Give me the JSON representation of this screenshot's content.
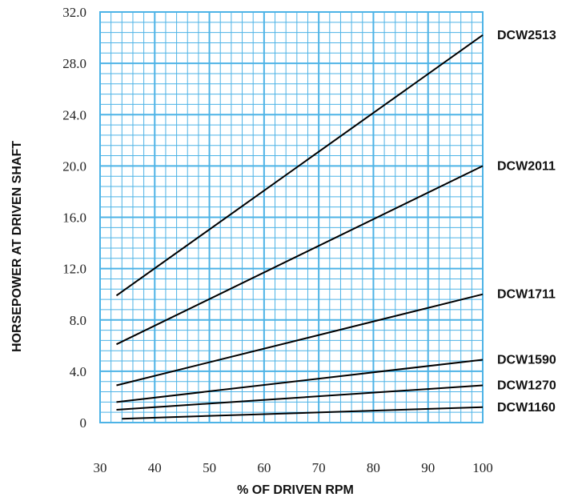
{
  "chart_data": {
    "type": "line",
    "title": "",
    "xlabel": "% OF DRIVEN RPM",
    "ylabel": "HORSEPOWER AT DRIVEN SHAFT",
    "xlim": [
      30,
      100
    ],
    "ylim": [
      0,
      32
    ],
    "x_ticks": [
      "30",
      "40",
      "50",
      "60",
      "70",
      "80",
      "90",
      "100"
    ],
    "x_tick_values": [
      30,
      40,
      50,
      60,
      70,
      80,
      90,
      100
    ],
    "y_ticks": [
      "0",
      "4.0",
      "8.0",
      "12.0",
      "16.0",
      "20.0",
      "24.0",
      "28.0",
      "32.0"
    ],
    "y_tick_values": [
      0,
      4,
      8,
      12,
      16,
      20,
      24,
      28,
      32
    ],
    "grid": true,
    "grid_color": "#4db3e6",
    "line_color": "#000000",
    "series": [
      {
        "name": "DCW2513",
        "x": [
          33,
          100
        ],
        "y": [
          9.9,
          30.2
        ]
      },
      {
        "name": "DCW2011",
        "x": [
          33,
          100
        ],
        "y": [
          6.1,
          20.0
        ]
      },
      {
        "name": "DCW1711",
        "x": [
          33,
          100
        ],
        "y": [
          2.9,
          10.0
        ]
      },
      {
        "name": "DCW1590",
        "x": [
          33,
          100
        ],
        "y": [
          1.6,
          4.9
        ]
      },
      {
        "name": "DCW1270",
        "x": [
          33,
          100
        ],
        "y": [
          1.0,
          2.9
        ]
      },
      {
        "name": "DCW1160",
        "x": [
          34,
          100
        ],
        "y": [
          0.3,
          1.2
        ]
      }
    ]
  }
}
